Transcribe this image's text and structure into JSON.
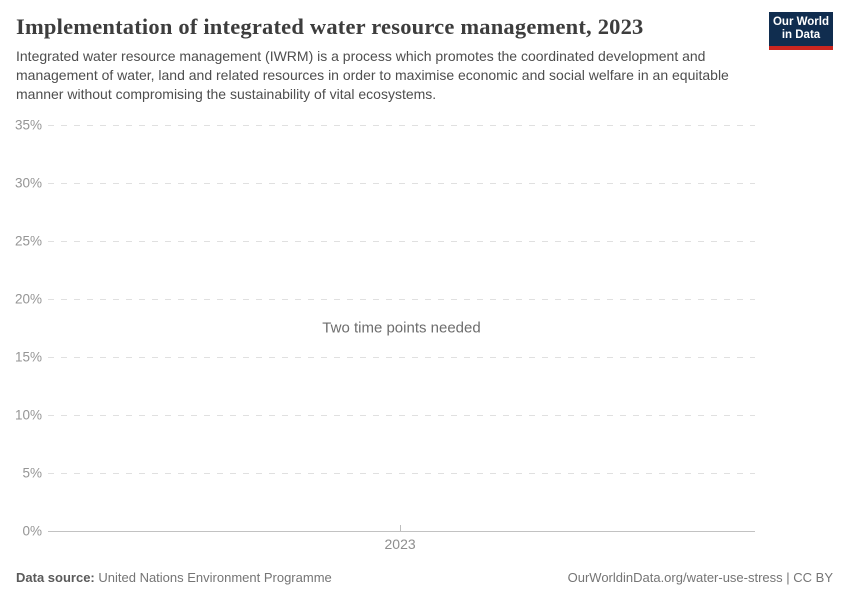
{
  "page": {
    "title": "Implementation of integrated water resource management, 2023",
    "subtitle": "Integrated water resource management (IWRM) is a process which promotes the coordinated development and management of water, land and related resources in order to maximise economic and social welfare in an equitable manner without compromising the sustainability of vital ecosystems."
  },
  "logo": {
    "line1": "Our World",
    "line2": "in Data"
  },
  "chart_data": {
    "type": "line",
    "title": "Implementation of integrated water resource management, 2023",
    "series": [],
    "message": "Two time points needed",
    "xlabel": "",
    "ylabel": "",
    "ylim": [
      0,
      35
    ],
    "y_tick_unit": "%",
    "y_ticks": [
      {
        "label": "0%",
        "value": 0
      },
      {
        "label": "5%",
        "value": 5
      },
      {
        "label": "10%",
        "value": 10
      },
      {
        "label": "15%",
        "value": 15
      },
      {
        "label": "20%",
        "value": 20
      },
      {
        "label": "25%",
        "value": 25
      },
      {
        "label": "30%",
        "value": 30
      },
      {
        "label": "35%",
        "value": 35
      }
    ],
    "x_ticks": [
      {
        "label": "2023",
        "pos": 0.498
      }
    ],
    "grid": "horizontal-dashed",
    "legend": "none"
  },
  "footer": {
    "datasource_label": "Data source:",
    "datasource_value": "United Nations Environment Programme",
    "attribution": "OurWorldinData.org/water-use-stress | CC BY"
  },
  "colors": {
    "logo_navy": "#102d4f",
    "logo_red": "#cb2620",
    "gridline": "#e0e0e0",
    "axis_line": "#c2c2c2",
    "tick_text": "#959595"
  }
}
